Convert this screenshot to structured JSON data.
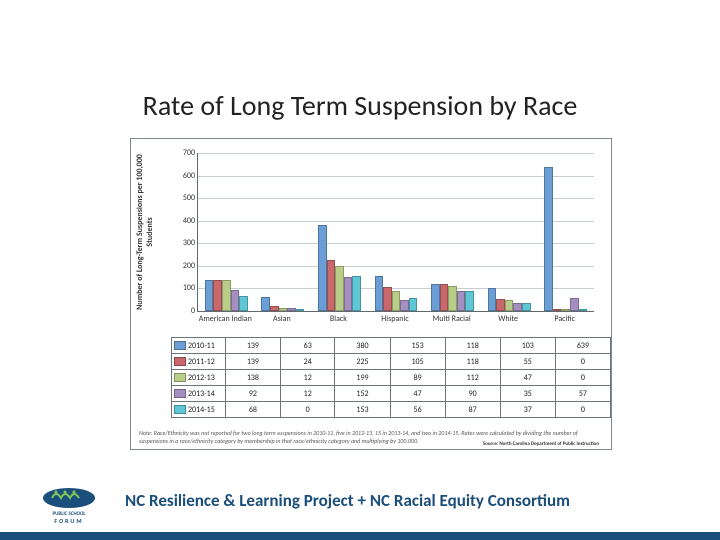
{
  "title": "Rate of Long Term Suspension by Race",
  "footer_text": "NC Resilience & Learning Project + NC Racial Equity Consortium",
  "logo_label": "Public School Forum",
  "chart": {
    "type": "grouped-bar",
    "y_title": "Number of Long-Term Suspensions per 100,000 Students",
    "y_min": 0,
    "y_max": 700,
    "y_tick_step": 100,
    "grid_color": "#c8cfd2",
    "border_color": "#7d8a8f",
    "categories": [
      "American Indian",
      "Asian",
      "Black",
      "Hispanic",
      "Multi Racial",
      "White",
      "Pacific"
    ],
    "series": [
      {
        "name": "2010-11",
        "color": "#6a9ed4",
        "values": [
          139,
          63,
          380,
          153,
          118,
          103,
          639
        ]
      },
      {
        "name": "2011-12",
        "color": "#c9686b",
        "values": [
          139,
          24,
          225,
          105,
          118,
          55,
          0
        ]
      },
      {
        "name": "2012-13",
        "color": "#b9cf89",
        "values": [
          138,
          12,
          199,
          89,
          112,
          47,
          0
        ]
      },
      {
        "name": "2013-14",
        "color": "#a58fc1",
        "values": [
          92,
          12,
          152,
          47,
          90,
          35,
          57
        ]
      },
      {
        "name": "2014-15",
        "color": "#5fc6d6",
        "values": [
          68,
          0,
          153,
          56,
          87,
          37,
          0
        ]
      }
    ],
    "note": "Note: Race/Ethnicity was not reported for two long term suspensions in 2010-11, five in 2012-13, 15 in 2013-14, and two in 2014-15. Rates were calculated by dividing the number of suspensions in a race/ethnicity category by membership in that race/ethnicity category and multiplying by 100,000.",
    "source": "Source: North Carolina Department of Public Instruction"
  }
}
